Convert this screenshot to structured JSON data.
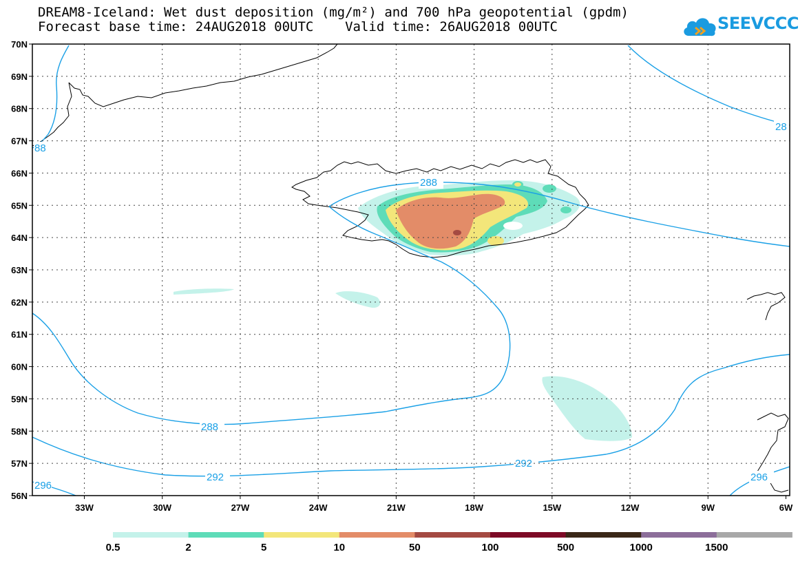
{
  "header": {
    "title_line1": "DREAM8-Iceland: Wet dust deposition (mg/m²) and 700 hPa geopotential (gpdm)",
    "title_line2": "Forecast base time: 24AUG2018 00UTC    Valid time: 26AUG2018 00UTC"
  },
  "logo": {
    "text": "SEEVCCC",
    "icon": "cloud-logo-icon"
  },
  "map": {
    "lat_labels": [
      "70N",
      "69N",
      "68N",
      "67N",
      "66N",
      "65N",
      "64N",
      "63N",
      "62N",
      "61N",
      "60N",
      "59N",
      "58N",
      "57N",
      "56N"
    ],
    "lon_labels": [
      "33W",
      "30W",
      "27W",
      "24W",
      "21W",
      "18W",
      "15W",
      "12W",
      "9W",
      "6W"
    ],
    "contour_color": "#1aa0e6",
    "coast_color": "#000000",
    "contour_labels": [
      "288",
      "288",
      "292",
      "292",
      "296",
      "296",
      "88",
      "28"
    ]
  },
  "colorbar": {
    "labels": [
      "0.5",
      "2",
      "5",
      "10",
      "50",
      "100",
      "500",
      "1000",
      "1500"
    ],
    "colors": [
      "#c4f2ea",
      "#5edcb8",
      "#f3e67a",
      "#e38c68",
      "#a44a42",
      "#7d0a26",
      "#3a2818",
      "#8c6e9a",
      "#a8a8a8"
    ]
  }
}
